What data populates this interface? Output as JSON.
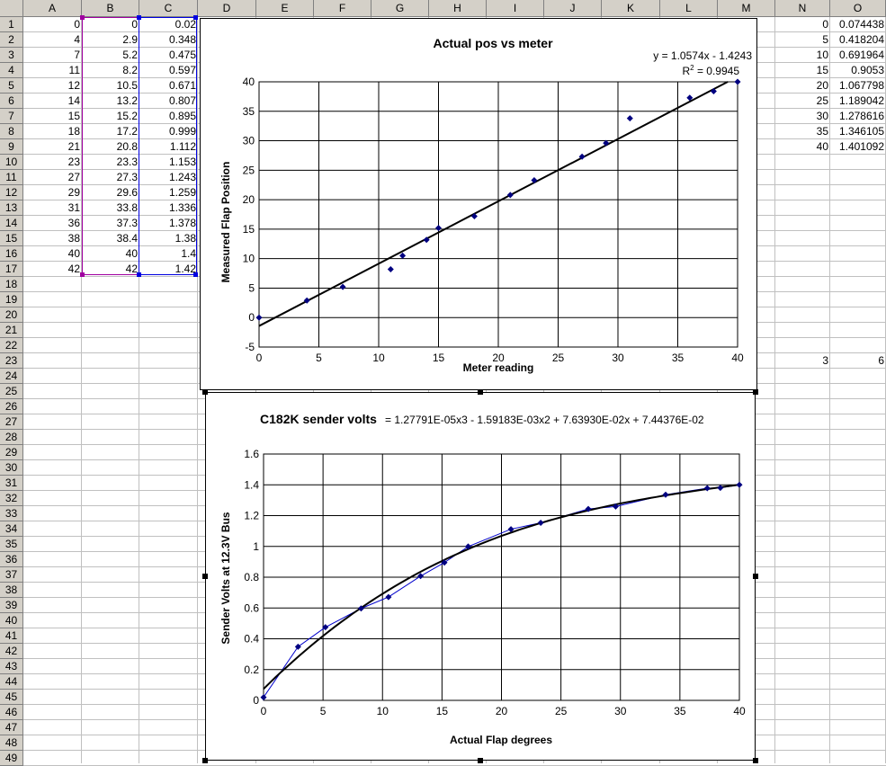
{
  "columns": [
    "A",
    "B",
    "C",
    "D",
    "E",
    "F",
    "G",
    "H",
    "I",
    "J",
    "K",
    "L",
    "M",
    "N",
    "O"
  ],
  "rows_count": 49,
  "cells": {
    "A": [
      0,
      4,
      7,
      11,
      12,
      14,
      15,
      18,
      21,
      23,
      27,
      29,
      31,
      36,
      38,
      40,
      42
    ],
    "B": [
      "0",
      "2.9",
      "5.2",
      "8.2",
      "10.5",
      "13.2",
      "15.2",
      "17.2",
      "20.8",
      "23.3",
      "27.3",
      "29.6",
      "33.8",
      "37.3",
      "38.4",
      "40",
      "42"
    ],
    "C": [
      "0.02",
      "0.348",
      "0.475",
      "0.597",
      "0.671",
      "0.807",
      "0.895",
      "0.999",
      "1.112",
      "1.153",
      "1.243",
      "1.259",
      "1.336",
      "1.378",
      "1.38",
      "1.4",
      "1.42"
    ],
    "N": [
      "0",
      "5",
      "10",
      "15",
      "20",
      "25",
      "30",
      "35",
      "40"
    ],
    "O": [
      "0.074438",
      "0.418204",
      "0.691964",
      "0.9053",
      "1.067798",
      "1.189042",
      "1.278616",
      "1.346105",
      "1.401092"
    ],
    "N23": "3",
    "O23": "6"
  },
  "chart_data": [
    {
      "type": "scatter",
      "title": "Actual pos vs meter",
      "xlabel": "Meter reading",
      "ylabel": "Measured Flap Position",
      "xlim": [
        0,
        40
      ],
      "ylim": [
        -5,
        40
      ],
      "xticks": [
        "0",
        "5",
        "10",
        "15",
        "20",
        "25",
        "30",
        "35",
        "40"
      ],
      "yticks": [
        "-5",
        "0",
        "5",
        "10",
        "15",
        "20",
        "25",
        "30",
        "35",
        "40"
      ],
      "trendline_eq": "y = 1.0574x - 1.4243",
      "r2_label": "R",
      "r2_sup": "2",
      "r2_value": " = 0.9945",
      "trendline": {
        "slope": 1.0574,
        "intercept": -1.4243
      },
      "x": [
        0,
        4,
        7,
        11,
        12,
        14,
        15,
        18,
        21,
        23,
        27,
        29,
        31,
        36,
        38,
        40
      ],
      "y": [
        0,
        2.9,
        5.2,
        8.2,
        10.5,
        13.2,
        15.2,
        17.2,
        20.8,
        23.3,
        27.3,
        29.6,
        33.8,
        37.3,
        38.4,
        40
      ],
      "grid": true,
      "marker_color": "#000080"
    },
    {
      "type": "line",
      "title": "C182K sender volts",
      "equation": "= 1.27791E-05x3 - 1.59183E-03x2 + 7.63930E-02x + 7.44376E-02",
      "xlabel": "Actual Flap degrees",
      "ylabel": "Sender Volts at 12.3V Bus",
      "xlim": [
        0,
        40
      ],
      "ylim": [
        0,
        1.6
      ],
      "xticks": [
        "0",
        "5",
        "10",
        "15",
        "20",
        "25",
        "30",
        "35",
        "40"
      ],
      "yticks": [
        "0",
        "0.2",
        "0.4",
        "0.6",
        "0.8",
        "1",
        "1.2",
        "1.4",
        "1.6"
      ],
      "x": [
        0,
        2.9,
        5.2,
        8.2,
        10.5,
        13.2,
        15.2,
        17.2,
        20.8,
        23.3,
        27.3,
        29.6,
        33.8,
        37.3,
        38.4,
        40
      ],
      "y": [
        0.02,
        0.348,
        0.475,
        0.597,
        0.671,
        0.807,
        0.895,
        0.999,
        1.112,
        1.153,
        1.243,
        1.259,
        1.336,
        1.378,
        1.38,
        1.4
      ],
      "poly": [
        0.0744376,
        0.076393,
        -0.00159183,
        1.27791e-05
      ],
      "grid": true,
      "marker_color": "#000080"
    }
  ]
}
